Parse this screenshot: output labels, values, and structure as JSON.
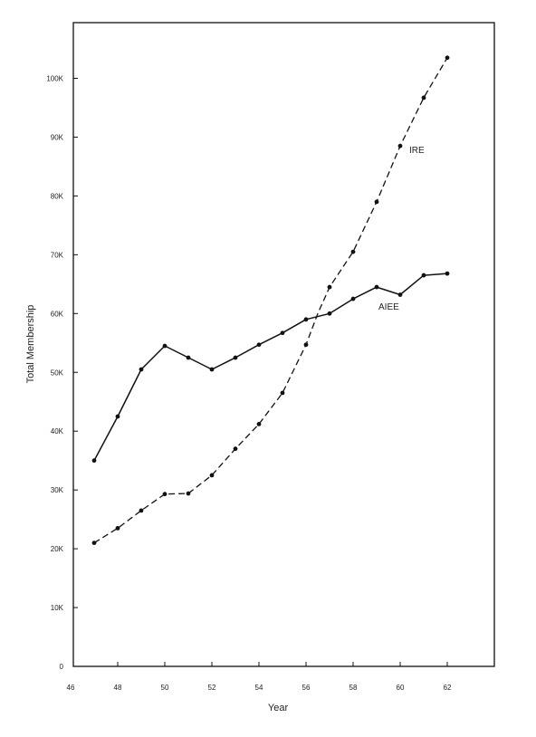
{
  "chart_data": {
    "type": "line",
    "xlabel": "Year",
    "ylabel": "Total Membership",
    "xlim": [
      46,
      64
    ],
    "ylim": [
      0,
      110000
    ],
    "x_ticks": [
      "46",
      "48",
      "50",
      "52",
      "54",
      "56",
      "58",
      "60",
      "62"
    ],
    "y_ticks": [
      "0",
      "10K",
      "20K",
      "30K",
      "40K",
      "50K",
      "60K",
      "70K",
      "80K",
      "90K",
      "100K"
    ],
    "grid": false,
    "legend": "none",
    "series": [
      {
        "name": "AIEE",
        "style": "solid",
        "x": [
          47,
          48,
          49,
          50,
          51,
          52,
          53,
          54,
          55,
          56,
          57,
          58,
          59,
          60,
          61,
          62
        ],
        "values": [
          35000,
          42500,
          50500,
          54500,
          52500,
          50500,
          52500,
          54700,
          56700,
          59000,
          60000,
          62500,
          64500,
          63200,
          66500,
          66800
        ]
      },
      {
        "name": "IRE",
        "style": "dashed",
        "x": [
          47,
          48,
          49,
          50,
          51,
          52,
          53,
          54,
          55,
          56,
          56.5,
          57,
          58,
          59,
          60,
          61,
          62
        ],
        "values": [
          21000,
          23500,
          26500,
          29300,
          29400,
          32500,
          37000,
          41200,
          46500,
          54700,
          60000,
          64500,
          70500,
          79000,
          88500,
          96700,
          103500
        ]
      }
    ]
  }
}
